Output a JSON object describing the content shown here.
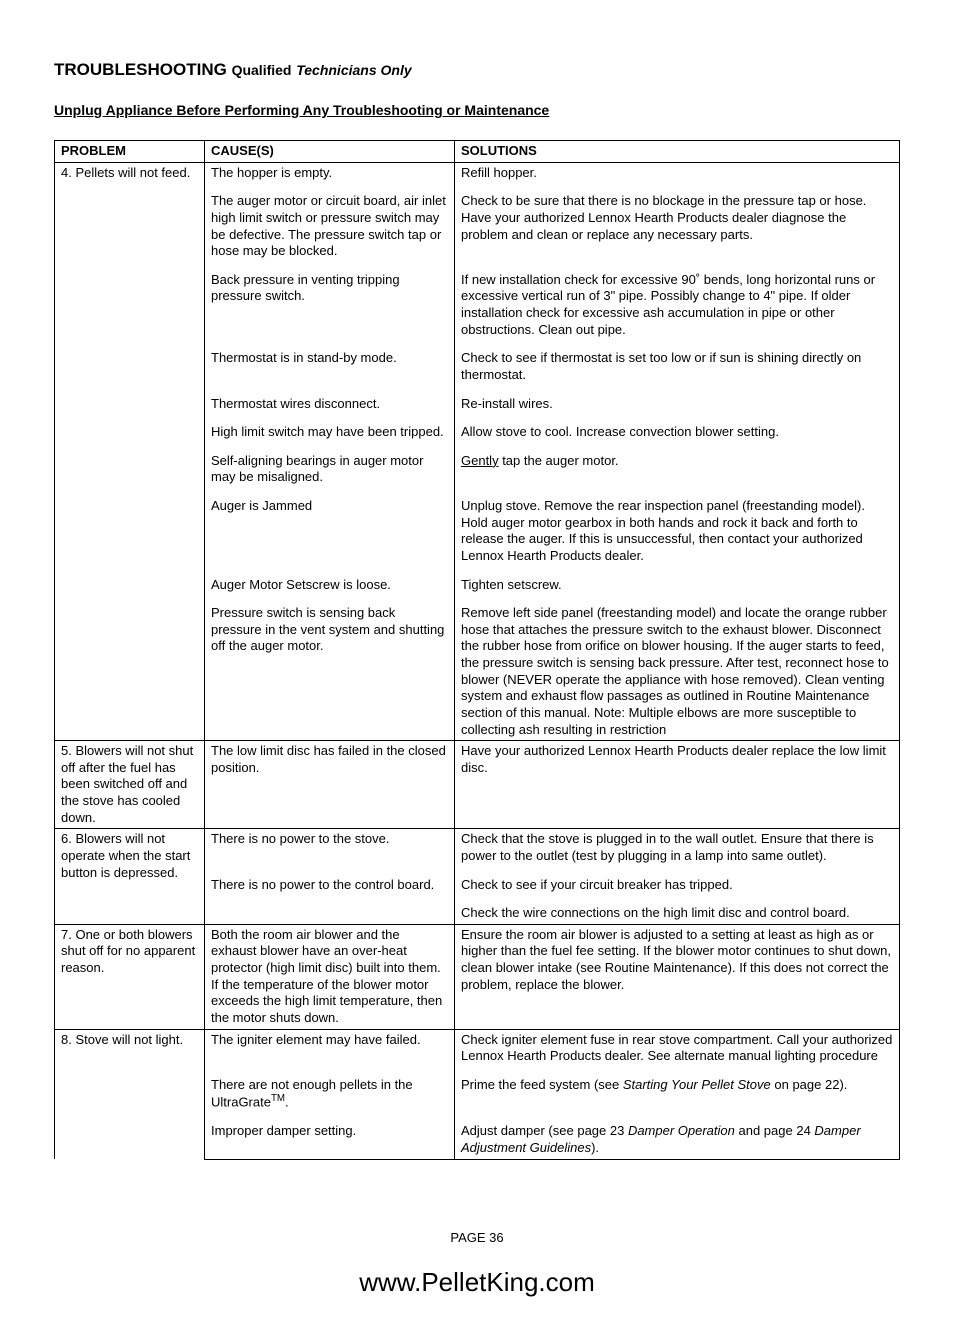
{
  "heading": {
    "big": "TROUBLESHOOTING",
    "mid": "Qualified",
    "ital": "Technicians Only"
  },
  "subheading": "Unplug Appliance Before Performing Any Troubleshooting or Maintenance",
  "columns": {
    "problem": "PROBLEM",
    "cause": "CAUSE(S)",
    "solutions": "SOLUTIONS"
  },
  "rows": [
    {
      "problem": "4. Pellets will not feed.",
      "items": [
        {
          "cause": "The hopper is empty.",
          "solution": "Refill hopper."
        },
        {
          "cause": "The auger motor or circuit board, air inlet high limit switch or pressure switch may be defective. The pressure switch tap or hose may be blocked.",
          "solution": "Check to be sure that there is no blockage in the pressure tap or hose. Have your authorized Lennox Hearth Products dealer diagnose the problem and clean or replace any necessary parts.",
          "justify": true
        },
        {
          "cause": "Back pressure in venting tripping pressure switch.",
          "solution": "If new installation check for excessive 90˚ bends, long horizontal runs or excessive vertical run of 3\" pipe. Possibly change to 4\" pipe. If older installation check for excessive ash accumulation in pipe or other obstructions. Clean out pipe.",
          "justify": true
        },
        {
          "cause": "Thermostat is in stand-by mode.",
          "solution": "Check to see if thermostat is set too low or if sun is shining directly on thermostat."
        },
        {
          "cause": "Thermostat wires disconnect.",
          "solution": "Re-install wires."
        },
        {
          "cause": "High limit switch may have been tripped.",
          "solution": "Allow stove to cool. Increase convection blower setting."
        },
        {
          "cause": "Self-aligning bearings in auger motor may be misaligned.",
          "solution_html": "<span class=\"underline-word\">Gently</span> tap the auger motor."
        },
        {
          "cause": "Auger is Jammed",
          "solution": "Unplug stove. Remove the rear inspection panel (freestanding model). Hold auger motor gearbox in both hands and rock it back and forth to release the auger. If this is unsuccessful, then contact your authorized Lennox Hearth Products dealer.",
          "justify": true
        },
        {
          "cause": "Auger Motor Setscrew is loose.",
          "solution": "Tighten setscrew."
        },
        {
          "cause": "Pressure switch is sensing back pressure in the vent system and shutting off the auger motor.",
          "solution": "Remove left side panel (freestanding model) and locate the orange rubber hose that attaches the pressure switch to the exhaust blower. Disconnect the rubber hose from orifice on blower housing. If the auger starts to feed, the pressure switch is sensing back pressure. After test, reconnect hose to blower (NEVER operate the appliance with hose removed). Clean venting system and exhaust flow passages as outlined in Routine Maintenance section of this manual. Note: Multiple elbows are more susceptible to collecting ash resulting in restriction",
          "justify": true
        }
      ]
    },
    {
      "problem": "5. Blowers will not shut off after the fuel has been switched off and the stove has cooled down.",
      "items": [
        {
          "cause": "The low limit disc has failed in the closed position.",
          "solution": "Have your authorized Lennox Hearth Products dealer replace the low limit disc.",
          "justify": true
        }
      ]
    },
    {
      "problem": "6. Blowers will not operate when the start button is depressed.",
      "items": [
        {
          "cause": "There is no power to the stove.",
          "solution": "Check that the stove is plugged in to the wall outlet. Ensure that there is power to the outlet (test by plugging in a lamp into same outlet).",
          "justify": true
        },
        {
          "cause": "There is no power to the control board.",
          "solution": "Check to see if your circuit breaker has tripped."
        },
        {
          "cause": "",
          "solution": "Check the wire connections on the high limit disc and control board."
        }
      ]
    },
    {
      "problem": "7. One or both blowers shut off for no apparent reason.",
      "items": [
        {
          "cause": "Both the room air blower and the exhaust blower have an over-heat protector (high limit disc) built into them. If the temperature of the blower motor exceeds the high limit temperature, then the motor shuts down.",
          "solution": "Ensure the room air blower is adjusted to a setting at least as high as or higher than the fuel fee setting. If the blower motor continues to shut down, clean blower intake (see Routine Maintenance). If this does not correct the problem, replace the blower.",
          "justify": true
        }
      ]
    },
    {
      "problem": "8. Stove will not light.",
      "items": [
        {
          "cause": "The igniter element may have failed.",
          "solution": "Check igniter element fuse in rear stove compartment. Call your authorized Lennox Hearth Products dealer. See alternate manual lighting procedure"
        },
        {
          "cause_html": "There are not enough pellets in the UltraGrate<span class=\"sup\">TM</span>.",
          "solution_html": "Prime the feed system (see <span class=\"ital\">Starting Your Pellet Stove</span> on page 22)."
        },
        {
          "cause": "Improper damper setting.",
          "solution_html": "Adjust damper (see page 23 <span class=\"ital\">Damper Operation</span> and page 24 <span class=\"ital\">Damper Adjustment Guidelines</span>)."
        }
      ]
    }
  ],
  "page_number": "PAGE 36",
  "footer_url": "www.PelletKing.com"
}
